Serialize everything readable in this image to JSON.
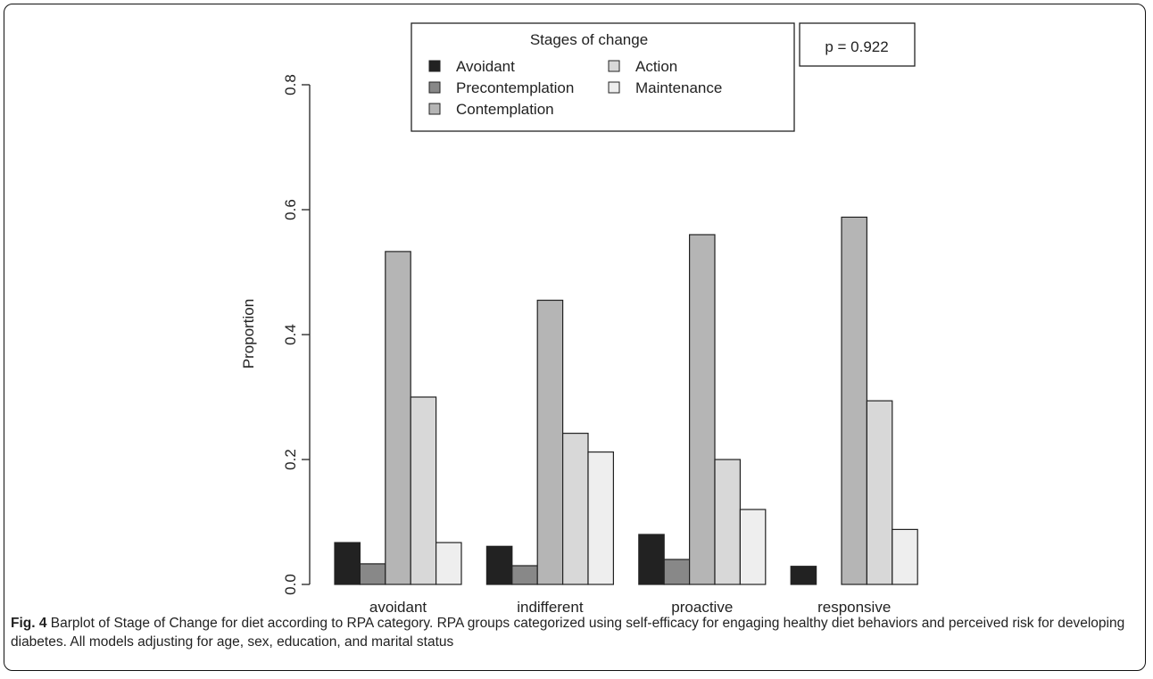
{
  "chart_data": {
    "type": "bar",
    "categories": [
      "avoidant",
      "indifferent",
      "proactive",
      "responsive"
    ],
    "series": [
      {
        "name": "Avoidant",
        "color": "#222222",
        "values": [
          0.067,
          0.061,
          0.08,
          0.029
        ]
      },
      {
        "name": "Precontemplation",
        "color": "#888888",
        "values": [
          0.033,
          0.03,
          0.04,
          0.0
        ]
      },
      {
        "name": "Contemplation",
        "color": "#b5b5b5",
        "values": [
          0.533,
          0.455,
          0.56,
          0.588
        ]
      },
      {
        "name": "Action",
        "color": "#d8d8d8",
        "values": [
          0.3,
          0.242,
          0.2,
          0.294
        ]
      },
      {
        "name": "Maintenance",
        "color": "#eeeeee",
        "values": [
          0.067,
          0.212,
          0.12,
          0.088
        ]
      }
    ],
    "ylabel": "Proportion",
    "ylim": [
      0,
      0.8
    ],
    "yticks": [
      "0.0",
      "0.2",
      "0.4",
      "0.6",
      "0.8"
    ],
    "legend_title": "Stages of change",
    "legend_position": "top-center",
    "annotation": "p = 0.922"
  },
  "caption": {
    "label": "Fig. 4",
    "text": " Barplot of Stage of Change for diet according to RPA category. RPA groups categorized using self-efficacy for engaging healthy diet behaviors and perceived risk for developing diabetes. All models adjusting for age, sex, education, and marital status"
  }
}
